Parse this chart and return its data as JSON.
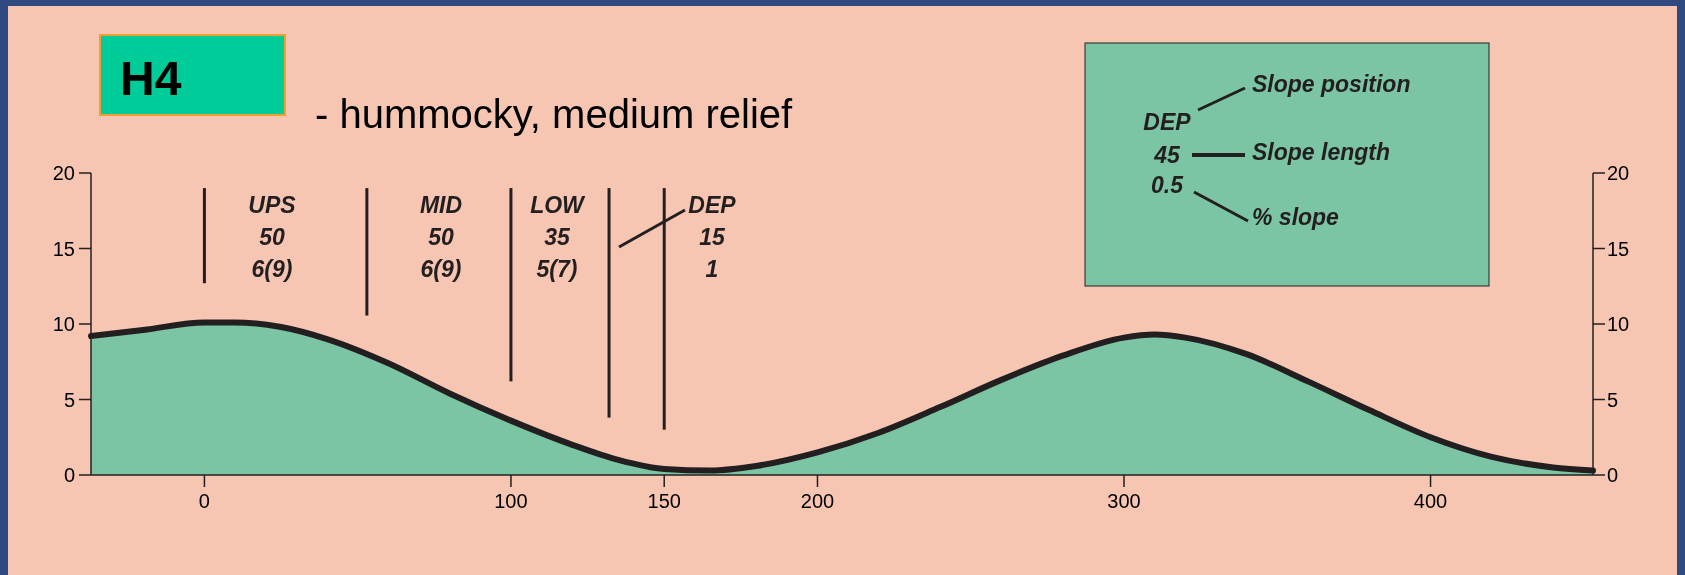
{
  "chart_data": {
    "type": "area",
    "title": "H4",
    "subtitle": "- hummocky, medium relief",
    "x": [
      -37,
      -20,
      0,
      10,
      25,
      40,
      60,
      80,
      100,
      120,
      135,
      150,
      165,
      180,
      200,
      220,
      240,
      260,
      280,
      300,
      310,
      320,
      340,
      360,
      380,
      400,
      420,
      440,
      453
    ],
    "series": [
      {
        "color": "#7bc4a4",
        "values": [
          9.2,
          9.6,
          10.1,
          10.1,
          9.8,
          9.0,
          7.4,
          5.4,
          3.6,
          2.0,
          1.0,
          0.4,
          0.3,
          0.6,
          1.5,
          2.8,
          4.5,
          6.3,
          7.9,
          9.1,
          9.3,
          9.1,
          8.0,
          6.2,
          4.3,
          2.5,
          1.2,
          0.5,
          0.3
        ]
      }
    ],
    "xlim": [
      -37,
      453
    ],
    "xticks": [
      0,
      100,
      150,
      200,
      300,
      400
    ],
    "ylim": [
      0,
      20
    ],
    "yticks": [
      0,
      5,
      10,
      15,
      20
    ],
    "y2lim": [
      0,
      20
    ],
    "y2ticks": [
      0,
      5,
      10,
      15,
      20
    ],
    "grid": false,
    "ref_lines": [
      {
        "axis": "x",
        "value": 0,
        "color": "#231f20"
      },
      {
        "axis": "x",
        "value": 53,
        "color": "#231f20"
      },
      {
        "axis": "x",
        "value": 100,
        "color": "#231f20"
      },
      {
        "axis": "x",
        "value": 132,
        "color": "#231f20"
      },
      {
        "axis": "x",
        "value": 150,
        "color": "#231f20"
      }
    ],
    "annotations": [
      "UPS\n50\n6(9)",
      "MID\n50\n6(9)",
      "LOW\n35\n5(7)",
      "DEP\n15\n1",
      "DEP",
      "45",
      "0.5",
      "Slope position",
      "Slope length",
      "% slope"
    ]
  }
}
